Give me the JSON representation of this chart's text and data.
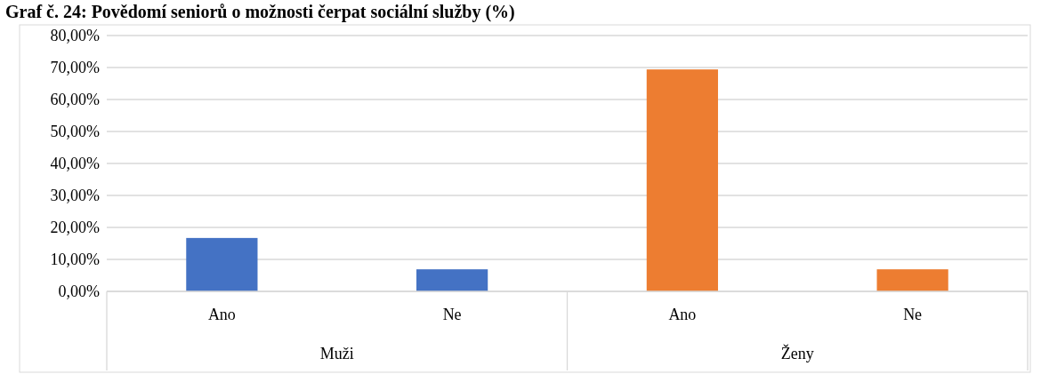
{
  "chart_data": {
    "type": "bar",
    "title": "Graf č. 24: Povědomí seniorů o možnosti čerpat sociální služby (%)",
    "categories": [
      "Ano",
      "Ne",
      "Ano",
      "Ne"
    ],
    "values": [
      16.7,
      6.9,
      69.4,
      6.9
    ],
    "colors": [
      "#4472c4",
      "#4472c4",
      "#ed7d31",
      "#ed7d31"
    ],
    "annotations": [
      "Muži",
      "Ženy"
    ],
    "ylim": [
      0,
      80
    ],
    "yticks": [
      {
        "value": 0,
        "label": "0,00%"
      },
      {
        "value": 10,
        "label": "10,00%"
      },
      {
        "value": 20,
        "label": "20,00%"
      },
      {
        "value": 30,
        "label": "30,00%"
      },
      {
        "value": 40,
        "label": "40,00%"
      },
      {
        "value": 50,
        "label": "50,00%"
      },
      {
        "value": 60,
        "label": "60,00%"
      },
      {
        "value": 70,
        "label": "70,00%"
      },
      {
        "value": 80,
        "label": "80,00%"
      }
    ],
    "grid": "y"
  }
}
